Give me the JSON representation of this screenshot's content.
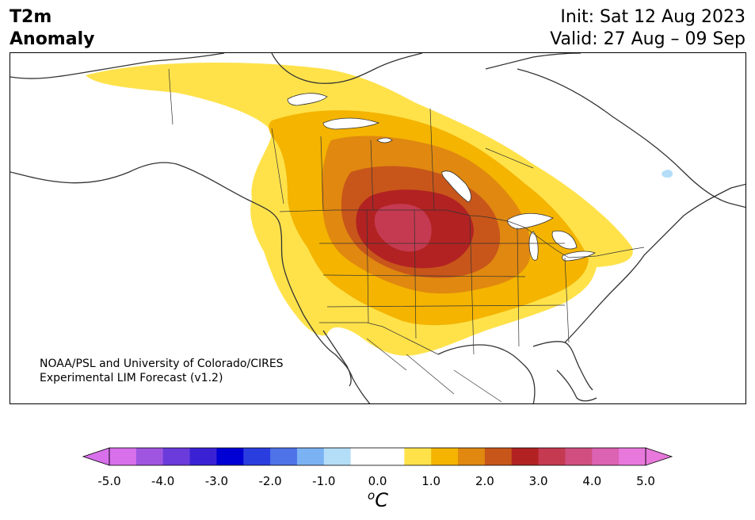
{
  "header": {
    "variable_line1": "T2m",
    "variable_line2": "Anomaly",
    "init_text": "Init: Sat 12 Aug 2023",
    "valid_text": "Valid: 27 Aug – 09 Sep"
  },
  "map": {
    "region": "North America",
    "credit_line1": "NOAA/PSL and University of Colorado/CIRES",
    "credit_line2": "Experimental LIM Forecast (v1.2)"
  },
  "colorbar": {
    "tick_labels": [
      "-5.0",
      "-4.0",
      "-3.0",
      "-2.0",
      "-1.0",
      "0.0",
      "1.0",
      "2.0",
      "3.0",
      "4.0",
      "5.0"
    ],
    "unit_sup": "o",
    "unit": "C",
    "levels": [
      -5.0,
      -4.5,
      -4.0,
      -3.5,
      -3.0,
      -2.5,
      -2.0,
      -1.5,
      -1.0,
      -0.5,
      0.5,
      1.0,
      1.5,
      2.0,
      2.5,
      3.0,
      3.5,
      4.0,
      4.5,
      5.0
    ],
    "colors": [
      "#d870ec",
      "#9f55e0",
      "#6b3bdc",
      "#3a22d4",
      "#0000d4",
      "#2a3ee0",
      "#4e72e8",
      "#7bb2f4",
      "#b4def8",
      "#ffffff",
      "#ffe24a",
      "#f4b400",
      "#e08810",
      "#c8561a",
      "#b22222",
      "#c53a50",
      "#d04f80",
      "#dc62b2",
      "#e878dc"
    ],
    "under_color": "#d870ec",
    "over_color": "#e878dc"
  }
}
